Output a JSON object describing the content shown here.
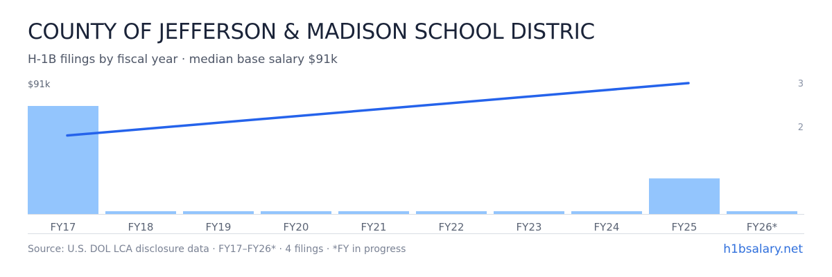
{
  "header": {
    "title": "COUNTY OF JEFFERSON & MADISON SCHOOL DISTRIC",
    "subtitle": "H-1B filings by fiscal year · median base salary $91k"
  },
  "footer": {
    "source": "Source: U.S. DOL LCA disclosure data · FY17–FY26* · 4 filings · *FY in progress",
    "brand": "h1bsalary.net"
  },
  "colors": {
    "bar": "#93c5fd",
    "line": "#2563eb",
    "axis_text": "#8a93a6",
    "label_text": "#5b6475",
    "baseline": "#d9dde4"
  },
  "chart_data": {
    "type": "bar",
    "categories": [
      "FY17",
      "FY18",
      "FY19",
      "FY20",
      "FY21",
      "FY22",
      "FY23",
      "FY24",
      "FY25",
      "FY26*"
    ],
    "series": [
      {
        "values": [
          91,
          0,
          0,
          0,
          0,
          0,
          0,
          0,
          30,
          0
        ]
      },
      {
        "values": [
          1.8,
          null,
          null,
          null,
          null,
          null,
          null,
          null,
          3,
          null
        ]
      }
    ],
    "left_axis": {
      "label": "$91k",
      "max": 91
    },
    "right_axis": {
      "ticks": [
        "2",
        "3"
      ],
      "range": [
        0,
        3
      ]
    },
    "grid": false
  }
}
